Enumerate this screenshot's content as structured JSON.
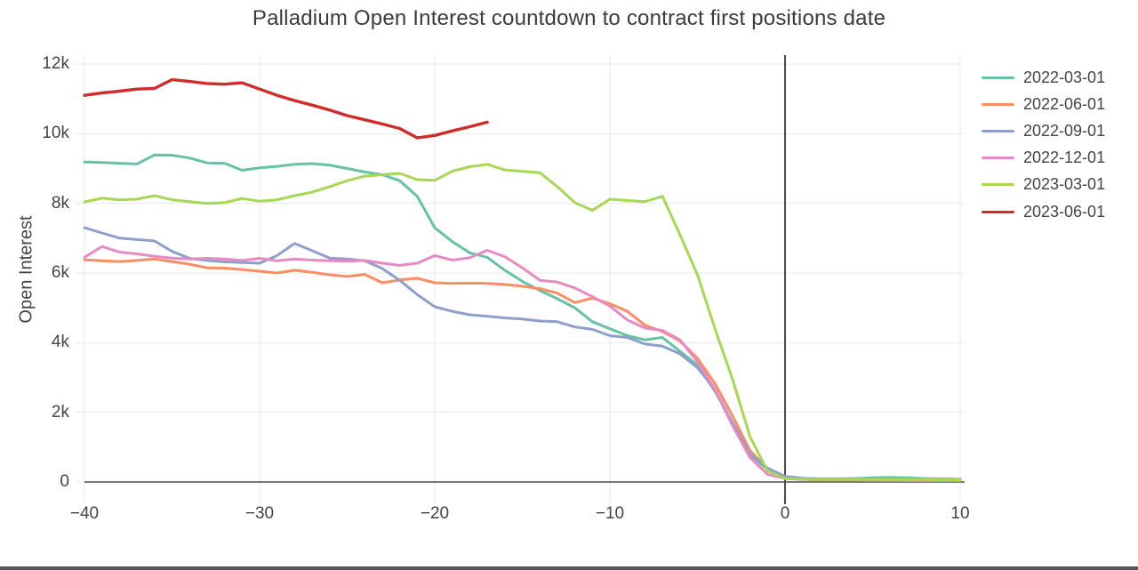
{
  "title": "Palladium Open Interest countdown to contract first positions date",
  "chart_data": {
    "type": "line",
    "title": "Palladium Open Interest countdown to contract first positions date",
    "xlabel": "",
    "ylabel": "Open Interest",
    "x_range": [
      -40,
      10
    ],
    "y_range": [
      0,
      12000
    ],
    "grid": true,
    "legend_position": "top-right-outside",
    "vline_x": 0,
    "x_start": -40,
    "x_step": 1,
    "x_ticks": {
      "values": [
        -40,
        -30,
        -20,
        -10,
        0,
        10
      ],
      "labels": [
        "−40",
        "−30",
        "−20",
        "−10",
        "0",
        "10"
      ]
    },
    "y_ticks": {
      "values": [
        0,
        2000,
        4000,
        6000,
        8000,
        10000,
        12000
      ],
      "labels": [
        "0",
        "2k",
        "4k",
        "6k",
        "8k",
        "10k",
        "12k"
      ]
    },
    "series": [
      {
        "name": "2022-03-01",
        "color": "#66c2a5",
        "values": [
          9190,
          9170,
          9150,
          9130,
          9390,
          9380,
          9300,
          9160,
          9150,
          8950,
          9020,
          9060,
          9120,
          9140,
          9100,
          9000,
          8900,
          8820,
          8650,
          8200,
          7300,
          6900,
          6580,
          6450,
          6080,
          5760,
          5500,
          5260,
          5000,
          4600,
          4400,
          4200,
          4080,
          4150,
          3750,
          3350,
          2600,
          1700,
          800,
          350,
          150,
          100,
          90,
          90,
          100,
          120,
          130,
          120,
          100,
          90,
          80
        ]
      },
      {
        "name": "2022-06-01",
        "color": "#fc8d62",
        "values": [
          6380,
          6350,
          6330,
          6360,
          6400,
          6330,
          6250,
          6150,
          6140,
          6100,
          6050,
          6000,
          6080,
          6020,
          5950,
          5900,
          5960,
          5720,
          5800,
          5850,
          5720,
          5700,
          5710,
          5700,
          5670,
          5620,
          5550,
          5420,
          5150,
          5280,
          5120,
          4900,
          4500,
          4320,
          4050,
          3550,
          2820,
          1900,
          900,
          380,
          150,
          90,
          70,
          60,
          60,
          55,
          50,
          50,
          45,
          45,
          40
        ]
      },
      {
        "name": "2022-09-01",
        "color": "#8da0cb",
        "values": [
          7300,
          7150,
          7000,
          6960,
          6920,
          6620,
          6420,
          6360,
          6320,
          6300,
          6280,
          6500,
          6850,
          6640,
          6430,
          6400,
          6350,
          6130,
          5790,
          5380,
          5030,
          4900,
          4800,
          4760,
          4710,
          4680,
          4620,
          4600,
          4450,
          4380,
          4200,
          4150,
          3960,
          3900,
          3680,
          3280,
          2650,
          1700,
          800,
          400,
          160,
          110,
          90,
          80,
          80,
          75,
          70,
          70,
          65,
          60,
          60
        ]
      },
      {
        "name": "2022-12-01",
        "color": "#e78ac3",
        "values": [
          6450,
          6760,
          6600,
          6550,
          6480,
          6430,
          6400,
          6420,
          6400,
          6360,
          6420,
          6350,
          6400,
          6370,
          6350,
          6340,
          6360,
          6280,
          6220,
          6280,
          6500,
          6370,
          6440,
          6650,
          6470,
          6150,
          5790,
          5740,
          5570,
          5320,
          5050,
          4650,
          4420,
          4350,
          4080,
          3450,
          2650,
          1620,
          700,
          220,
          100,
          70,
          60,
          50,
          50,
          45,
          45,
          40,
          40,
          40,
          40
        ]
      },
      {
        "name": "2023-03-01",
        "color": "#a6d854",
        "values": [
          8040,
          8150,
          8100,
          8120,
          8220,
          8100,
          8050,
          8000,
          8020,
          8140,
          8060,
          8100,
          8220,
          8320,
          8480,
          8650,
          8780,
          8820,
          8860,
          8680,
          8660,
          8920,
          9050,
          9120,
          8960,
          8920,
          8880,
          8480,
          8020,
          7800,
          8120,
          8080,
          8050,
          8200,
          7100,
          5950,
          4400,
          2950,
          1300,
          320,
          100,
          80,
          70,
          70,
          70,
          70,
          70,
          70,
          70,
          65,
          60
        ]
      },
      {
        "name": "2023-06-01",
        "color": "#d22b2b",
        "values": [
          11100,
          11170,
          11220,
          11280,
          11300,
          11550,
          11500,
          11440,
          11420,
          11460,
          11280,
          11100,
          10950,
          10820,
          10680,
          10520,
          10400,
          10280,
          10150,
          9880,
          9950,
          10080,
          10200,
          10330
        ]
      }
    ]
  }
}
